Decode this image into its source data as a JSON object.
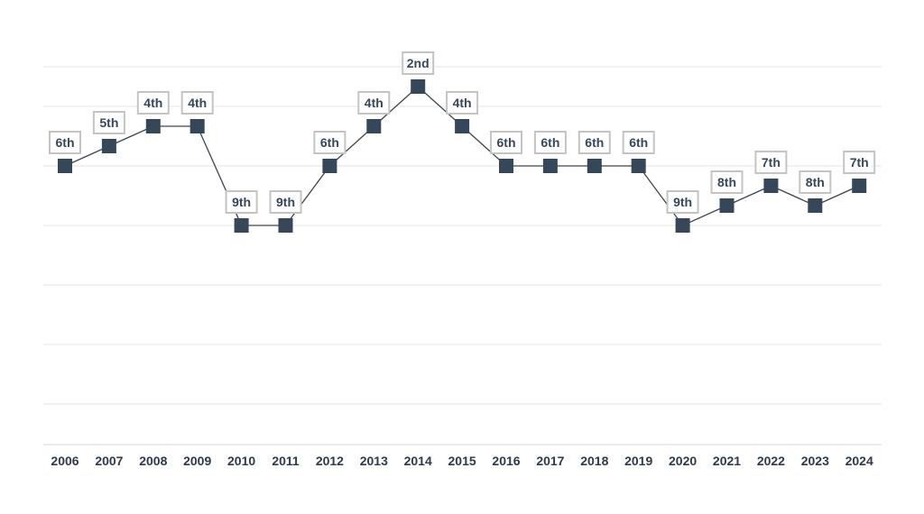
{
  "chart_data": {
    "type": "line",
    "categories": [
      "2006",
      "2007",
      "2008",
      "2009",
      "2010",
      "2011",
      "2012",
      "2013",
      "2014",
      "2015",
      "2016",
      "2017",
      "2018",
      "2019",
      "2020",
      "2021",
      "2022",
      "2023",
      "2024"
    ],
    "values": [
      6,
      5,
      4,
      4,
      9,
      9,
      6,
      4,
      2,
      4,
      6,
      6,
      6,
      6,
      9,
      8,
      7,
      8,
      7
    ],
    "data_labels": [
      "6th",
      "5th",
      "4th",
      "4th",
      "9th",
      "9th",
      "6th",
      "4th",
      "2nd",
      "4th",
      "6th",
      "6th",
      "6th",
      "6th",
      "9th",
      "8th",
      "7th",
      "8th",
      "7th"
    ],
    "y_reversed": true,
    "ylim": [
      0,
      20
    ],
    "grid": true,
    "colors": {
      "line": "#3d4450",
      "marker": "#37475a",
      "label_border": "#c4c4c4",
      "grid": "#e2e5e8"
    }
  }
}
